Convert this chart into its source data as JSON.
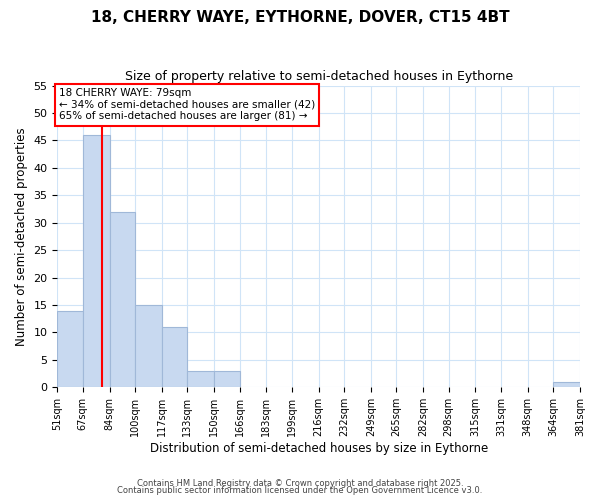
{
  "title": "18, CHERRY WAYE, EYTHORNE, DOVER, CT15 4BT",
  "subtitle": "Size of property relative to semi-detached houses in Eythorne",
  "xlabel": "Distribution of semi-detached houses by size in Eythorne",
  "ylabel": "Number of semi-detached properties",
  "bin_edges": [
    51,
    67,
    84,
    100,
    117,
    133,
    150,
    166,
    183,
    199,
    216,
    232,
    249,
    265,
    282,
    298,
    315,
    331,
    348,
    364,
    381
  ],
  "bar_heights": [
    14,
    46,
    32,
    15,
    11,
    3,
    3,
    0,
    0,
    0,
    0,
    0,
    0,
    0,
    0,
    0,
    0,
    0,
    0,
    1
  ],
  "bar_color": "#c8d9f0",
  "bar_edge_color": "#a0b8d8",
  "red_line_x": 79,
  "ylim": [
    0,
    55
  ],
  "yticks": [
    0,
    5,
    10,
    15,
    20,
    25,
    30,
    35,
    40,
    45,
    50,
    55
  ],
  "annotation_title": "18 CHERRY WAYE: 79sqm",
  "annotation_line1": "← 34% of semi-detached houses are smaller (42)",
  "annotation_line2": "65% of semi-detached houses are larger (81) →",
  "background_color": "#ffffff",
  "grid_color": "#d0e4f7",
  "footer1": "Contains HM Land Registry data © Crown copyright and database right 2025.",
  "footer2": "Contains public sector information licensed under the Open Government Licence v3.0.",
  "title_fontsize": 11,
  "subtitle_fontsize": 9
}
